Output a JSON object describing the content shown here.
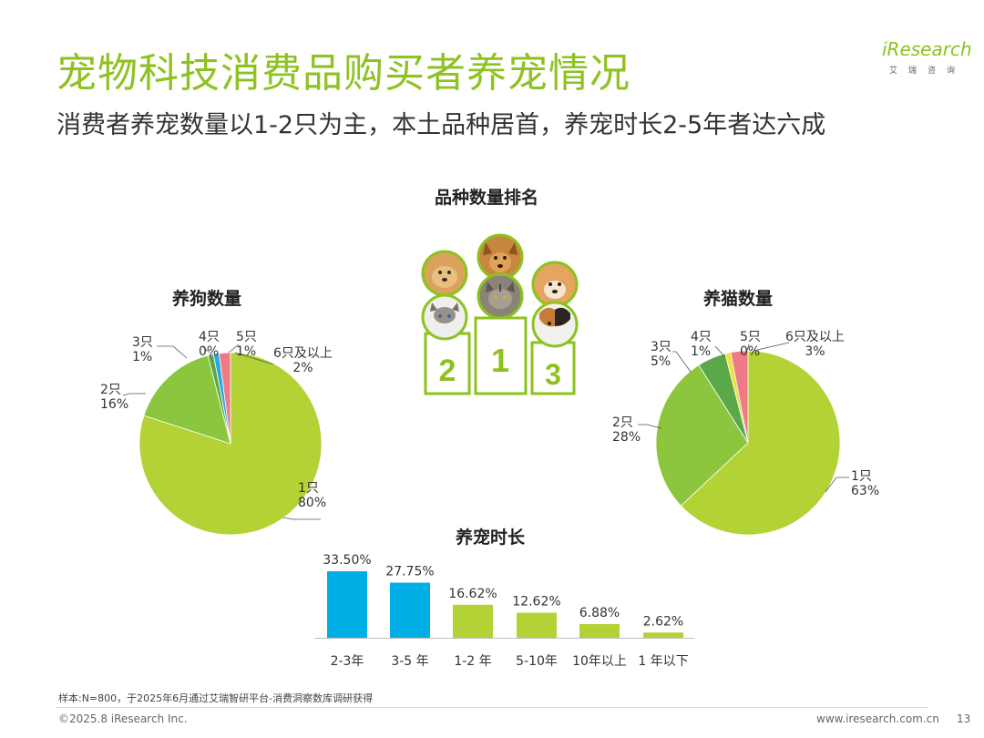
{
  "header": {
    "title": "宠物科技消费品购买者养宠情况",
    "subtitle": "消费者养宠数量以1-2只为主，本土品种居首，养宠时长2-5年者达六成"
  },
  "logo": {
    "main": "iResearch",
    "sub": "艾瑞咨询"
  },
  "ranking": {
    "title": "品种数量排名",
    "podium": [
      "2",
      "1",
      "3"
    ]
  },
  "colors": {
    "accent": "#8dc21f",
    "pie_main": "#b2d235",
    "pie_second": "#8cc63f",
    "pie_third": "#5aa847",
    "pie_yellow": "#f2e33a",
    "pie_blue": "#29a8e0",
    "pie_pink": "#ef7a85",
    "bar_blue": "#00aee6",
    "bar_green": "#b2d235"
  },
  "chart_data": [
    {
      "type": "pie",
      "title": "养狗数量",
      "labels": [
        "1只",
        "2只",
        "3只",
        "4只",
        "5只",
        "6只及以上"
      ],
      "values": [
        80,
        16,
        1,
        0,
        1,
        2
      ],
      "value_labels": [
        "80%",
        "16%",
        "1%",
        "0%",
        "1%",
        "2%"
      ]
    },
    {
      "type": "pie",
      "title": "养猫数量",
      "labels": [
        "1只",
        "2只",
        "3只",
        "4只",
        "5只",
        "6只及以上"
      ],
      "values": [
        63,
        28,
        5,
        1,
        0,
        3
      ],
      "value_labels": [
        "63%",
        "28%",
        "5%",
        "1%",
        "0%",
        "3%"
      ]
    },
    {
      "type": "bar",
      "title": "养宠时长",
      "categories": [
        "2-3年",
        "3-5 年",
        "1-2 年",
        "5-10年",
        "10年以上",
        "1 年以下"
      ],
      "values": [
        33.5,
        27.75,
        16.62,
        12.62,
        6.88,
        2.62
      ],
      "value_labels": [
        "33.50%",
        "27.75%",
        "16.62%",
        "12.62%",
        "6.88%",
        "2.62%"
      ],
      "highlight": [
        true,
        true,
        false,
        false,
        false,
        false
      ]
    }
  ],
  "footer": {
    "note": "样本:N=800，于2025年6月通过艾瑞智研平台-消费洞察数库调研获得",
    "copyright": "©2025.8 iResearch Inc.",
    "website": "www.iresearch.com.cn",
    "page": "13"
  }
}
